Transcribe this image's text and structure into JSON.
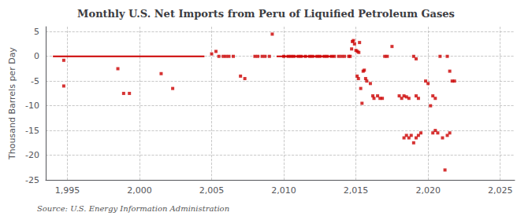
{
  "chart_data": {
    "type": "scatter",
    "title": "Monthly U.S. Net Imports from Peru of Liquified Petroleum Gases",
    "ylabel": "Thousand Barrels per Day",
    "source": "Source: U.S. Energy Information Administration",
    "xlim": [
      1993.5,
      2026
    ],
    "ylim": [
      -25,
      6
    ],
    "xticks": [
      1995,
      2000,
      2005,
      2010,
      2015,
      2020,
      2025
    ],
    "yticks": [
      5,
      0,
      -5,
      -10,
      -15,
      -20,
      -25
    ],
    "grid": true,
    "series": [
      {
        "type": "line",
        "color": "#cc0000",
        "x": [
          1994.0,
          2004.5
        ],
        "values": [
          0,
          0
        ]
      },
      {
        "type": "line",
        "color": "#cc0000",
        "x": [
          2009.5,
          2013.5
        ],
        "values": [
          0,
          0
        ]
      },
      {
        "type": "scatter",
        "color": "#cc0000",
        "marker": "square",
        "x": [
          1994.75,
          1994.75,
          1998.5,
          1998.9,
          1999.3,
          2001.5,
          2002.3,
          2005.0,
          2005.3,
          2005.5,
          2005.8,
          2006.0,
          2006.2,
          2006.5,
          2007.0,
          2007.3,
          2008.0,
          2008.2,
          2008.5,
          2008.7,
          2009.0,
          2009.2,
          2010.0,
          2010.3,
          2010.5,
          2010.7,
          2011.0,
          2011.2,
          2011.5,
          2011.8,
          2012.0,
          2012.3,
          2012.5,
          2012.8,
          2013.0,
          2013.3,
          2013.5,
          2013.8,
          2014.0,
          2014.2,
          2014.5,
          2014.6,
          2014.7,
          2014.75,
          2014.83,
          2014.9,
          2015.0,
          2015.1,
          2015.2,
          2015.25,
          2015.08,
          2015.17,
          2015.33,
          2015.42,
          2015.5,
          2015.58,
          2015.67,
          2015.75,
          2016.0,
          2016.17,
          2016.25,
          2016.5,
          2016.67,
          2016.83,
          2017.0,
          2017.17,
          2017.5,
          2018.0,
          2018.17,
          2018.33,
          2018.5,
          2018.67,
          2018.33,
          2018.5,
          2018.67,
          2018.83,
          2019.0,
          2019.17,
          2019.33,
          2019.17,
          2019.33,
          2019.5,
          2019.0,
          2019.17,
          2019.83,
          2020.0,
          2020.17,
          2020.33,
          2020.5,
          2020.33,
          2020.5,
          2020.67,
          2020.83,
          2021.0,
          2021.17,
          2021.33,
          2021.5,
          2021.33,
          2021.5,
          2021.67,
          2021.83
        ],
        "values": [
          -0.8,
          -6.0,
          -2.5,
          -7.5,
          -7.5,
          -3.5,
          -6.5,
          0.5,
          1.0,
          0.0,
          0.0,
          0.0,
          0.0,
          0.0,
          -4.0,
          -4.5,
          0.0,
          0.0,
          0.0,
          0.0,
          0.0,
          4.5,
          0.0,
          0.0,
          0.0,
          0.0,
          0.0,
          0.0,
          0.0,
          0.0,
          0.0,
          0.0,
          0.0,
          0.0,
          0.0,
          0.0,
          0.0,
          0.0,
          0.0,
          0.0,
          0.0,
          0.0,
          1.5,
          3.0,
          3.2,
          2.5,
          1.2,
          1.0,
          0.8,
          2.8,
          -4.0,
          -4.5,
          -6.5,
          -9.5,
          -3.0,
          -2.8,
          -4.5,
          -5.0,
          -5.5,
          -8.0,
          -8.5,
          -8.0,
          -8.5,
          -8.5,
          0.0,
          0.0,
          2.0,
          -8.0,
          -8.5,
          -8.0,
          -8.2,
          -8.5,
          -16.5,
          -16.0,
          -16.5,
          -16.0,
          -17.5,
          -8.0,
          -8.5,
          -16.5,
          -16.0,
          -15.5,
          0.0,
          -0.5,
          -5.0,
          -5.5,
          -10.0,
          -8.0,
          -8.5,
          -15.5,
          -15.0,
          -15.5,
          0.0,
          -16.5,
          -23.0,
          -16.0,
          -15.5,
          0.0,
          -3.0,
          -5.0,
          -5.0
        ]
      }
    ]
  }
}
